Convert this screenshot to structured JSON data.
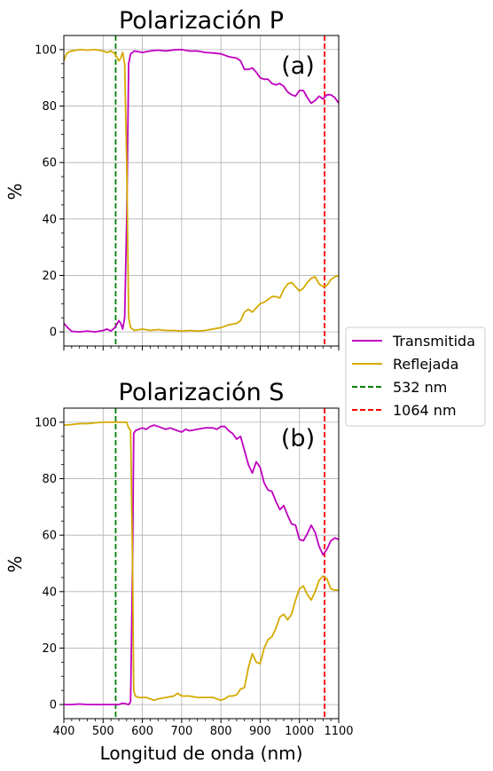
{
  "chart_data": {
    "type": "line",
    "xlim": [
      400,
      1100
    ],
    "ylim": [
      -5,
      105
    ],
    "x_ticks": [
      400,
      500,
      600,
      700,
      800,
      900,
      1000,
      1100
    ],
    "y_ticks": [
      0,
      20,
      40,
      60,
      80,
      100
    ],
    "grid": true,
    "xlabel": "Longitud de onda (nm)",
    "ylabel": "%",
    "legend_position": "right-center",
    "reference_lines": [
      {
        "name": "532 nm",
        "x": 532,
        "color": "#008000",
        "style": "dashed"
      },
      {
        "name": "1064 nm",
        "x": 1064,
        "color": "#ff0000",
        "style": "dashed"
      }
    ],
    "legend": [
      {
        "label": "Transmitida",
        "color": "#bf00bf",
        "style": "solid"
      },
      {
        "label": "Reflejada",
        "color": "#d4aa00",
        "style": "solid"
      },
      {
        "label": "532 nm",
        "color": "#008000",
        "style": "dashed"
      },
      {
        "label": "1064 nm",
        "color": "#ff0000",
        "style": "dashed"
      }
    ],
    "panels": [
      {
        "title": "Polarización P",
        "tag": "(a)",
        "series": [
          {
            "name": "Transmitida",
            "color": "#bf00bf",
            "x": [
              400,
              410,
              420,
              440,
              460,
              480,
              500,
              510,
              520,
              530,
              540,
              545,
              550,
              555,
              560,
              565,
              570,
              580,
              600,
              620,
              640,
              660,
              680,
              700,
              720,
              740,
              760,
              780,
              800,
              820,
              840,
              850,
              860,
              870,
              880,
              890,
              900,
              910,
              920,
              930,
              940,
              950,
              960,
              970,
              980,
              990,
              1000,
              1010,
              1020,
              1030,
              1040,
              1050,
              1060,
              1070,
              1080,
              1090,
              1100
            ],
            "y": [
              3,
              1.5,
              0.2,
              0,
              0.3,
              0,
              0.5,
              1,
              0.3,
              1.5,
              4,
              3,
              1,
              5,
              40,
              95,
              98.5,
              99.5,
              99,
              99.5,
              99.8,
              99.5,
              99.9,
              100,
              99.5,
              99.5,
              99,
              98.8,
              98.5,
              97.5,
              97,
              96,
              93,
              93,
              93.5,
              92,
              90,
              89.5,
              89.5,
              88,
              87.5,
              88,
              87,
              85,
              84,
              83.5,
              85.5,
              85.5,
              83,
              81,
              82,
              83.5,
              82.5,
              84,
              84,
              83,
              81
            ]
          },
          {
            "name": "Reflejada",
            "color": "#d4aa00",
            "x": [
              400,
              405,
              410,
              420,
              440,
              460,
              480,
              500,
              510,
              520,
              530,
              540,
              545,
              550,
              555,
              560,
              565,
              570,
              580,
              600,
              620,
              640,
              660,
              680,
              700,
              720,
              740,
              760,
              780,
              800,
              820,
              840,
              850,
              860,
              870,
              880,
              890,
              900,
              910,
              920,
              930,
              940,
              950,
              960,
              970,
              980,
              990,
              1000,
              1010,
              1020,
              1030,
              1040,
              1050,
              1060,
              1070,
              1080,
              1090,
              1100
            ],
            "y": [
              96,
              98,
              99,
              99.5,
              100,
              99.8,
              100,
              99.5,
              99,
              99.5,
              98.5,
              96,
              97,
              99,
              95,
              60,
              5,
              1.5,
              0.5,
              1,
              0.5,
              0.8,
              0.5,
              0.5,
              0.3,
              0.5,
              0.3,
              0.5,
              1,
              1.5,
              2.5,
              3,
              4,
              7,
              8,
              7,
              8.5,
              10,
              10.5,
              11.5,
              12.5,
              12.5,
              12,
              15,
              17,
              17.5,
              16,
              14.5,
              15.5,
              17.5,
              19,
              19.5,
              17,
              16,
              16.5,
              18.5,
              19.5,
              20
            ]
          }
        ]
      },
      {
        "title": "Polarización S",
        "tag": "(b)",
        "series": [
          {
            "name": "Transmitida",
            "color": "#bf00bf",
            "x": [
              400,
              420,
              440,
              460,
              480,
              500,
              520,
              540,
              550,
              560,
              565,
              570,
              575,
              578,
              582,
              590,
              600,
              610,
              620,
              630,
              640,
              650,
              660,
              670,
              680,
              690,
              700,
              710,
              720,
              740,
              760,
              780,
              790,
              800,
              810,
              820,
              830,
              840,
              850,
              860,
              870,
              880,
              890,
              900,
              910,
              920,
              930,
              940,
              950,
              960,
              970,
              980,
              990,
              1000,
              1010,
              1020,
              1030,
              1040,
              1050,
              1060,
              1070,
              1080,
              1090,
              1100
            ],
            "y": [
              0,
              0,
              0.2,
              0,
              0,
              0,
              0,
              0,
              0.5,
              0.2,
              0,
              1,
              50,
              96,
              97,
              97.5,
              98,
              97.5,
              98.5,
              99,
              98.5,
              98,
              97.5,
              98,
              97.5,
              97,
              96.5,
              97.5,
              97,
              97.5,
              98,
              98,
              97.5,
              98.5,
              98.5,
              97,
              96,
              94,
              95,
              90,
              85,
              82,
              86,
              84,
              78.5,
              76,
              75.5,
              72,
              69,
              70.5,
              67,
              64,
              63.5,
              58.5,
              58,
              60.5,
              63.5,
              61,
              56,
              53,
              55,
              58,
              59,
              58.5
            ]
          },
          {
            "name": "Reflejada",
            "color": "#d4aa00",
            "x": [
              400,
              420,
              440,
              460,
              480,
              500,
              520,
              540,
              550,
              560,
              565,
              570,
              575,
              578,
              582,
              590,
              600,
              610,
              620,
              630,
              640,
              660,
              680,
              690,
              700,
              720,
              740,
              760,
              780,
              800,
              810,
              820,
              830,
              840,
              850,
              860,
              870,
              880,
              890,
              900,
              910,
              920,
              930,
              940,
              950,
              960,
              970,
              980,
              990,
              1000,
              1010,
              1020,
              1030,
              1040,
              1050,
              1060,
              1070,
              1080,
              1090,
              1100
            ],
            "y": [
              99,
              99.2,
              99.5,
              99.5,
              99.8,
              100,
              100,
              100,
              100,
              100,
              98,
              97,
              50,
              5,
              3,
              2.5,
              2.5,
              2.5,
              2,
              1.5,
              2,
              2.5,
              3,
              4,
              3,
              3,
              2.5,
              2.5,
              2.5,
              1.5,
              2,
              3,
              3,
              3.5,
              5.5,
              6,
              13,
              18,
              15,
              14.5,
              20,
              23,
              24,
              27,
              31,
              32,
              30,
              32,
              37,
              41,
              42,
              39,
              37,
              40,
              44,
              45.5,
              44.5,
              41,
              40.5,
              40.5
            ]
          }
        ]
      }
    ]
  }
}
